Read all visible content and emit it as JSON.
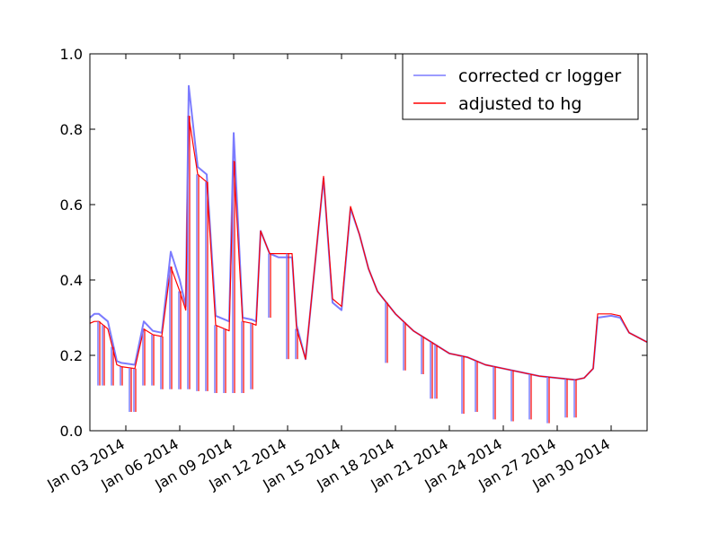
{
  "chart_data": {
    "type": "line",
    "title": "",
    "xlabel": "",
    "ylabel": "",
    "xlim": [
      "2014-01-01T00:00",
      "2014-02-01T00:00"
    ],
    "ylim": [
      0.0,
      1.0
    ],
    "x_ticks": [
      "2014-01-03",
      "2014-01-06",
      "2014-01-09",
      "2014-01-12",
      "2014-01-15",
      "2014-01-18",
      "2014-01-21",
      "2014-01-24",
      "2014-01-27",
      "2014-01-30"
    ],
    "x_tick_labels": [
      "Jan 03 2014",
      "Jan 06 2014",
      "Jan 09 2014",
      "Jan 12 2014",
      "Jan 15 2014",
      "Jan 18 2014",
      "Jan 21 2014",
      "Jan 24 2014",
      "Jan 27 2014",
      "Jan 30 2014"
    ],
    "y_ticks": [
      0.0,
      0.2,
      0.4,
      0.6,
      0.8,
      1.0
    ],
    "y_tick_labels": [
      "0.0",
      "0.2",
      "0.4",
      "0.6",
      "0.8",
      "1.0"
    ],
    "grid": false,
    "legend_position": "top-right",
    "series": [
      {
        "name": "corrected cr logger",
        "color": "#7b7bff",
        "x": [
          "2014-01-01T00:00",
          "2014-01-01T06:00",
          "2014-01-01T12:00",
          "2014-01-02T00:00",
          "2014-01-02T12:00",
          "2014-01-02T18:00",
          "2014-01-03T12:00",
          "2014-01-04T00:00",
          "2014-01-04T12:00",
          "2014-01-05T00:00",
          "2014-01-05T12:00",
          "2014-01-06T00:00",
          "2014-01-06T08:00",
          "2014-01-06T12:00",
          "2014-01-07T00:00",
          "2014-01-07T12:00",
          "2014-01-08T00:00",
          "2014-01-08T12:00",
          "2014-01-08T18:00",
          "2014-01-09T00:00",
          "2014-01-09T12:00",
          "2014-01-10T00:00",
          "2014-01-10T06:00",
          "2014-01-10T12:00",
          "2014-01-11T00:00",
          "2014-01-11T12:00",
          "2014-01-12T00:00",
          "2014-01-12T06:00",
          "2014-01-12T12:00",
          "2014-01-13T00:00",
          "2014-01-14T00:00",
          "2014-01-14T12:00",
          "2014-01-15T00:00",
          "2014-01-15T12:00",
          "2014-01-16T00:00",
          "2014-01-16T12:00",
          "2014-01-17T00:00",
          "2014-01-18T00:00",
          "2014-01-19T00:00",
          "2014-01-20T00:00",
          "2014-01-20T12:00",
          "2014-01-21T00:00",
          "2014-01-22T00:00",
          "2014-01-23T00:00",
          "2014-01-24T00:00",
          "2014-01-25T00:00",
          "2014-01-26T00:00",
          "2014-01-27T00:00",
          "2014-01-28T00:00",
          "2014-01-28T12:00",
          "2014-01-29T00:00",
          "2014-01-29T06:00",
          "2014-01-30T00:00",
          "2014-01-30T12:00",
          "2014-01-31T00:00",
          "2014-02-01T00:00"
        ],
        "y": [
          0.3,
          0.31,
          0.31,
          0.29,
          0.185,
          0.18,
          0.175,
          0.29,
          0.265,
          0.26,
          0.475,
          0.4,
          0.33,
          0.915,
          0.7,
          0.68,
          0.305,
          0.295,
          0.29,
          0.79,
          0.3,
          0.295,
          0.29,
          0.53,
          0.47,
          0.46,
          0.46,
          0.46,
          0.28,
          0.19,
          0.67,
          0.34,
          0.32,
          0.59,
          0.52,
          0.43,
          0.37,
          0.31,
          0.265,
          0.235,
          0.22,
          0.205,
          0.195,
          0.175,
          0.165,
          0.155,
          0.145,
          0.14,
          0.135,
          0.14,
          0.165,
          0.3,
          0.305,
          0.3,
          0.26,
          0.235
        ]
      },
      {
        "name": "adjusted to hg",
        "color": "#ff0000",
        "x": [
          "2014-01-01T00:00",
          "2014-01-01T06:00",
          "2014-01-01T12:00",
          "2014-01-02T00:00",
          "2014-01-02T12:00",
          "2014-01-02T18:00",
          "2014-01-03T12:00",
          "2014-01-04T00:00",
          "2014-01-04T12:00",
          "2014-01-05T00:00",
          "2014-01-05T12:00",
          "2014-01-06T00:00",
          "2014-01-06T08:00",
          "2014-01-06T12:00",
          "2014-01-07T00:00",
          "2014-01-07T12:00",
          "2014-01-08T00:00",
          "2014-01-08T12:00",
          "2014-01-08T18:00",
          "2014-01-09T00:00",
          "2014-01-09T12:00",
          "2014-01-10T00:00",
          "2014-01-10T06:00",
          "2014-01-10T12:00",
          "2014-01-11T00:00",
          "2014-01-11T12:00",
          "2014-01-12T00:00",
          "2014-01-12T06:00",
          "2014-01-12T12:00",
          "2014-01-13T00:00",
          "2014-01-14T00:00",
          "2014-01-14T12:00",
          "2014-01-15T00:00",
          "2014-01-15T12:00",
          "2014-01-16T00:00",
          "2014-01-16T12:00",
          "2014-01-17T00:00",
          "2014-01-18T00:00",
          "2014-01-19T00:00",
          "2014-01-20T00:00",
          "2014-01-20T12:00",
          "2014-01-21T00:00",
          "2014-01-22T00:00",
          "2014-01-23T00:00",
          "2014-01-24T00:00",
          "2014-01-25T00:00",
          "2014-01-26T00:00",
          "2014-01-27T00:00",
          "2014-01-28T00:00",
          "2014-01-28T12:00",
          "2014-01-29T00:00",
          "2014-01-29T06:00",
          "2014-01-30T00:00",
          "2014-01-30T12:00",
          "2014-01-31T00:00",
          "2014-02-01T00:00"
        ],
        "y": [
          0.285,
          0.29,
          0.29,
          0.27,
          0.175,
          0.17,
          0.165,
          0.27,
          0.255,
          0.25,
          0.435,
          0.37,
          0.32,
          0.835,
          0.68,
          0.66,
          0.28,
          0.27,
          0.265,
          0.715,
          0.29,
          0.285,
          0.28,
          0.53,
          0.47,
          0.47,
          0.47,
          0.47,
          0.27,
          0.19,
          0.675,
          0.35,
          0.33,
          0.595,
          0.52,
          0.43,
          0.37,
          0.31,
          0.265,
          0.235,
          0.22,
          0.205,
          0.195,
          0.175,
          0.165,
          0.155,
          0.145,
          0.14,
          0.135,
          0.14,
          0.165,
          0.31,
          0.31,
          0.305,
          0.26,
          0.235
        ]
      }
    ],
    "dropouts": [
      {
        "x": "2014-01-01T12:00",
        "y": 0.12
      },
      {
        "x": "2014-01-01T18:00",
        "y": 0.12
      },
      {
        "x": "2014-01-02T06:00",
        "y": 0.12
      },
      {
        "x": "2014-01-02T18:00",
        "y": 0.12
      },
      {
        "x": "2014-01-03T06:00",
        "y": 0.05
      },
      {
        "x": "2014-01-03T12:00",
        "y": 0.05
      },
      {
        "x": "2014-01-04T00:00",
        "y": 0.12
      },
      {
        "x": "2014-01-04T12:00",
        "y": 0.12
      },
      {
        "x": "2014-01-05T00:00",
        "y": 0.11
      },
      {
        "x": "2014-01-05T12:00",
        "y": 0.11
      },
      {
        "x": "2014-01-06T00:00",
        "y": 0.11
      },
      {
        "x": "2014-01-06T12:00",
        "y": 0.11
      },
      {
        "x": "2014-01-07T00:00",
        "y": 0.105
      },
      {
        "x": "2014-01-07T12:00",
        "y": 0.105
      },
      {
        "x": "2014-01-08T00:00",
        "y": 0.1
      },
      {
        "x": "2014-01-08T12:00",
        "y": 0.1
      },
      {
        "x": "2014-01-09T00:00",
        "y": 0.1
      },
      {
        "x": "2014-01-09T12:00",
        "y": 0.1
      },
      {
        "x": "2014-01-10T00:00",
        "y": 0.11
      },
      {
        "x": "2014-01-11T00:00",
        "y": 0.3
      },
      {
        "x": "2014-01-12T00:00",
        "y": 0.19
      },
      {
        "x": "2014-01-12T12:00",
        "y": 0.19
      },
      {
        "x": "2014-01-17T12:00",
        "y": 0.18
      },
      {
        "x": "2014-01-18T12:00",
        "y": 0.16
      },
      {
        "x": "2014-01-19T12:00",
        "y": 0.15
      },
      {
        "x": "2014-01-20T00:00",
        "y": 0.085
      },
      {
        "x": "2014-01-20T06:00",
        "y": 0.085
      },
      {
        "x": "2014-01-21T18:00",
        "y": 0.045
      },
      {
        "x": "2014-01-22T12:00",
        "y": 0.05
      },
      {
        "x": "2014-01-23T12:00",
        "y": 0.03
      },
      {
        "x": "2014-01-24T12:00",
        "y": 0.025
      },
      {
        "x": "2014-01-25T12:00",
        "y": 0.03
      },
      {
        "x": "2014-01-26T12:00",
        "y": 0.02
      },
      {
        "x": "2014-01-27T12:00",
        "y": 0.035
      },
      {
        "x": "2014-01-28T00:00",
        "y": 0.035
      }
    ]
  }
}
